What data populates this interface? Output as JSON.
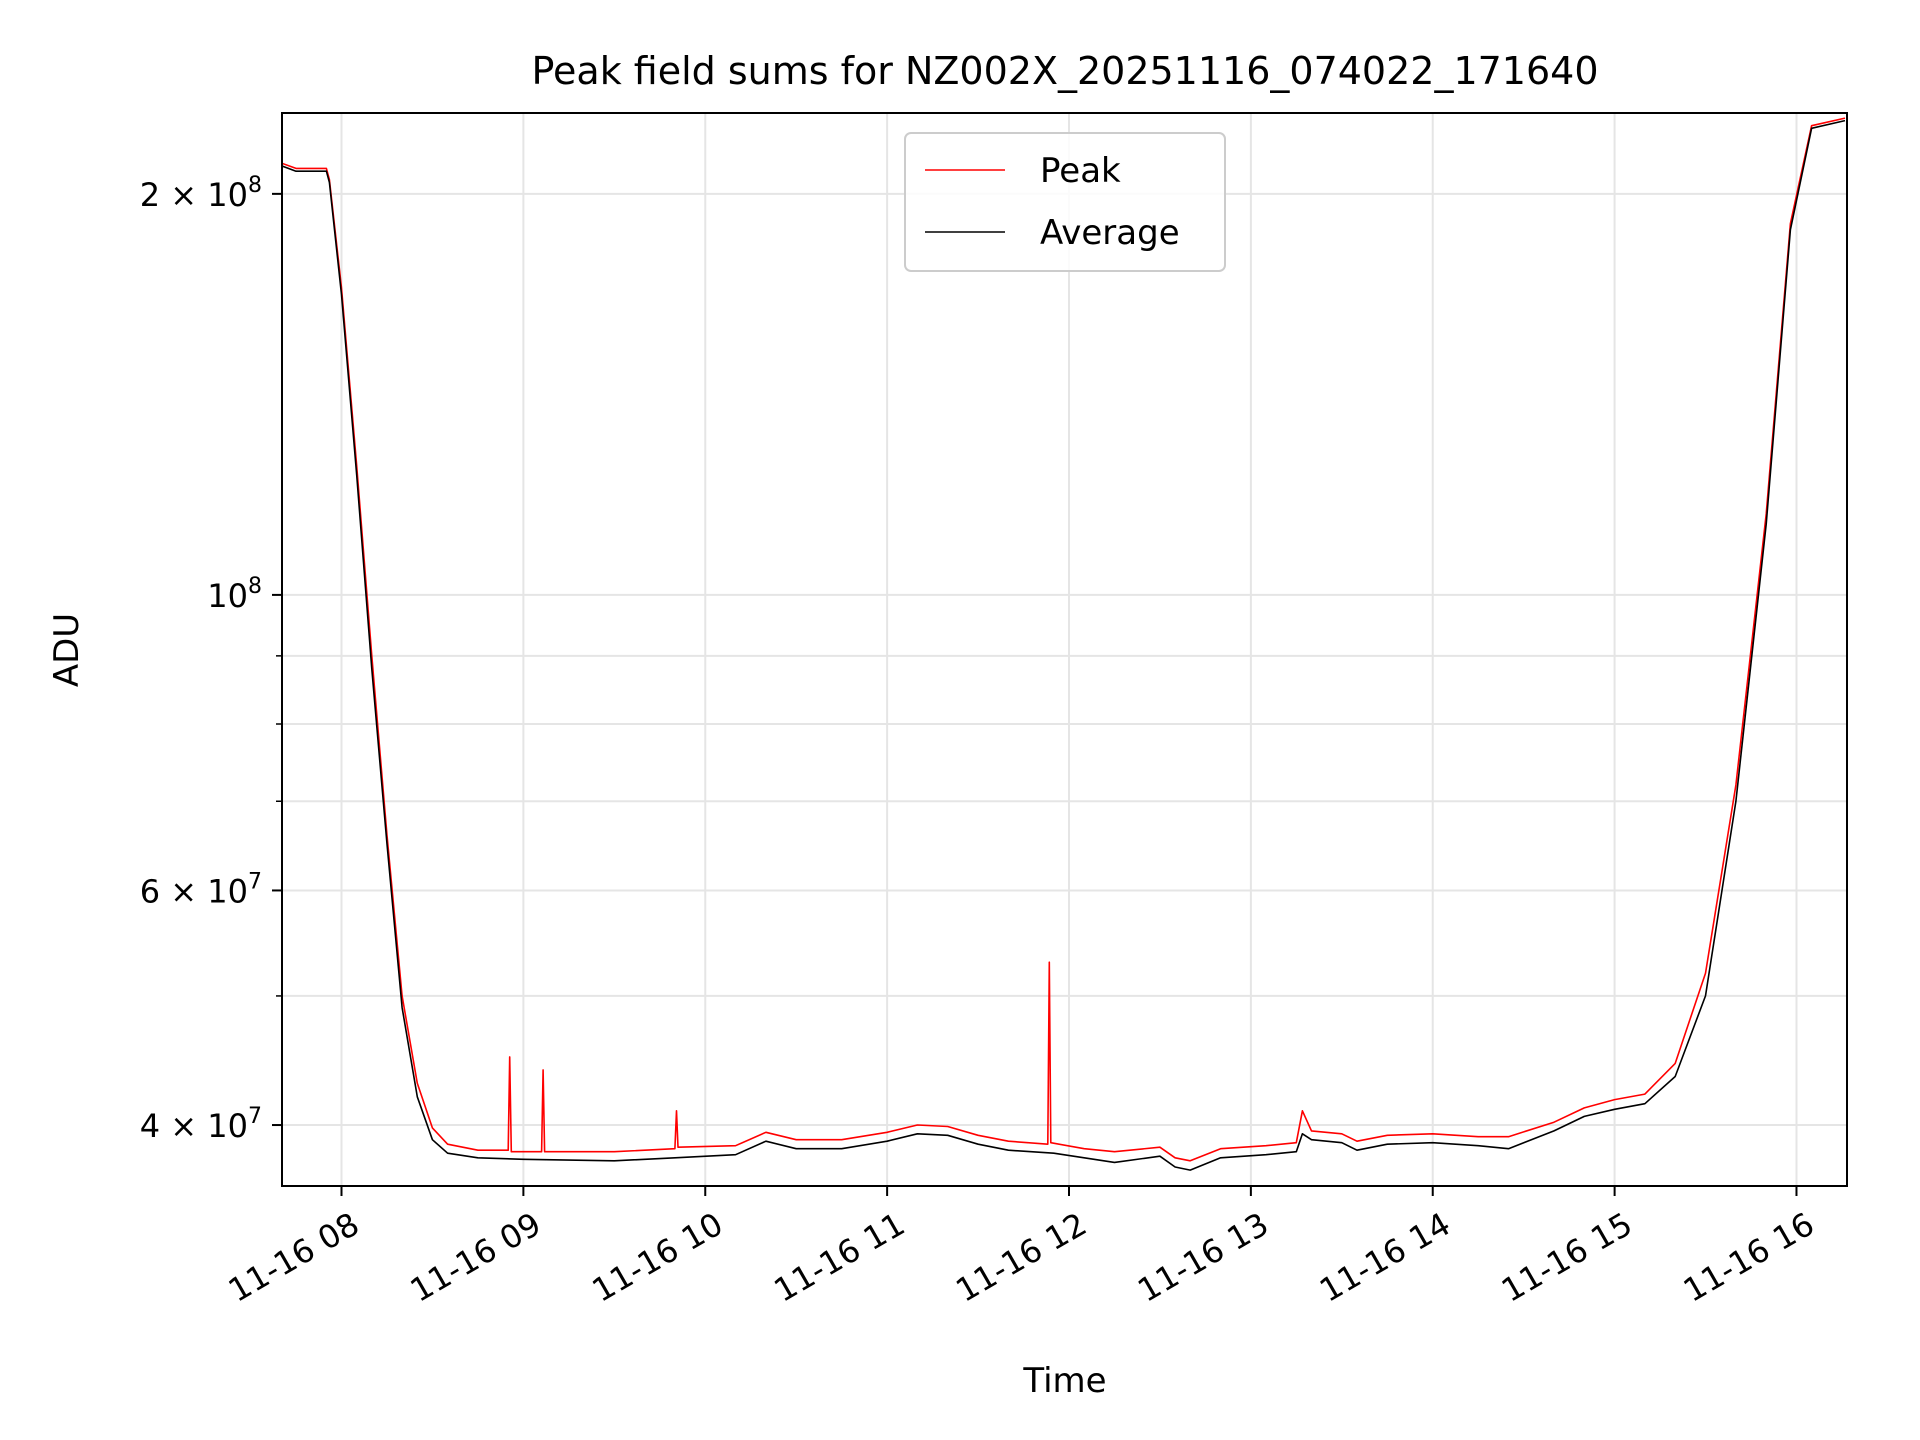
{
  "chart_data": {
    "type": "line",
    "title": "Peak field sums for NZ002X_20251116_074022_171640",
    "xlabel": "Time",
    "ylabel": "ADU",
    "yscale": "log",
    "xlim": [
      "2025-11-16 07:40:22",
      "2025-11-16 16:16:40"
    ],
    "ylim": [
      36000000,
      230000000
    ],
    "grid": true,
    "legend": "upper center",
    "x_ticks": [
      {
        "t": "2025-11-16 08:00",
        "label": "11-16 08"
      },
      {
        "t": "2025-11-16 09:00",
        "label": "11-16 09"
      },
      {
        "t": "2025-11-16 10:00",
        "label": "11-16 10"
      },
      {
        "t": "2025-11-16 11:00",
        "label": "11-16 11"
      },
      {
        "t": "2025-11-16 12:00",
        "label": "11-16 12"
      },
      {
        "t": "2025-11-16 13:00",
        "label": "11-16 13"
      },
      {
        "t": "2025-11-16 14:00",
        "label": "11-16 14"
      },
      {
        "t": "2025-11-16 15:00",
        "label": "11-16 15"
      },
      {
        "t": "2025-11-16 16:00",
        "label": "11-16 16"
      }
    ],
    "y_ticks": [
      {
        "v": 40000000,
        "mant": "4",
        "exp": "7"
      },
      {
        "v": 60000000,
        "mant": "6",
        "exp": "7"
      },
      {
        "v": 100000000,
        "mant": "",
        "exp": "8"
      },
      {
        "v": 200000000,
        "mant": "2",
        "exp": "8"
      }
    ],
    "y_minor_ticks": [
      50000000,
      70000000,
      80000000,
      90000000
    ],
    "series": [
      {
        "name": "Peak",
        "color": "#ff0000",
        "points": [
          [
            "2025-11-16 07:40",
            211000000
          ],
          [
            "2025-11-16 07:45",
            209000000
          ],
          [
            "2025-11-16 07:55",
            209000000
          ],
          [
            "2025-11-16 07:56",
            205000000
          ],
          [
            "2025-11-16 08:00",
            170000000
          ],
          [
            "2025-11-16 08:05",
            125000000
          ],
          [
            "2025-11-16 08:10",
            90000000
          ],
          [
            "2025-11-16 08:15",
            66000000
          ],
          [
            "2025-11-16 08:20",
            50000000
          ],
          [
            "2025-11-16 08:25",
            43000000
          ],
          [
            "2025-11-16 08:30",
            39800000
          ],
          [
            "2025-11-16 08:35",
            38700000
          ],
          [
            "2025-11-16 08:45",
            38300000
          ],
          [
            "2025-11-16 08:55",
            38300000
          ],
          [
            "2025-11-16 08:55:30",
            45000000
          ],
          [
            "2025-11-16 08:56",
            38200000
          ],
          [
            "2025-11-16 09:06",
            38200000
          ],
          [
            "2025-11-16 09:06:30",
            44000000
          ],
          [
            "2025-11-16 09:07",
            38200000
          ],
          [
            "2025-11-16 09:30",
            38200000
          ],
          [
            "2025-11-16 09:50",
            38400000
          ],
          [
            "2025-11-16 09:50:30",
            41000000
          ],
          [
            "2025-11-16 09:51",
            38500000
          ],
          [
            "2025-11-16 10:10",
            38600000
          ],
          [
            "2025-11-16 10:20",
            39500000
          ],
          [
            "2025-11-16 10:30",
            39000000
          ],
          [
            "2025-11-16 10:45",
            39000000
          ],
          [
            "2025-11-16 11:00",
            39500000
          ],
          [
            "2025-11-16 11:10",
            40000000
          ],
          [
            "2025-11-16 11:20",
            39900000
          ],
          [
            "2025-11-16 11:30",
            39300000
          ],
          [
            "2025-11-16 11:40",
            38900000
          ],
          [
            "2025-11-16 11:53",
            38700000
          ],
          [
            "2025-11-16 11:53:30",
            53000000
          ],
          [
            "2025-11-16 11:54",
            38800000
          ],
          [
            "2025-11-16 12:05",
            38400000
          ],
          [
            "2025-11-16 12:15",
            38200000
          ],
          [
            "2025-11-16 12:30",
            38500000
          ],
          [
            "2025-11-16 12:35",
            37800000
          ],
          [
            "2025-11-16 12:40",
            37600000
          ],
          [
            "2025-11-16 12:50",
            38400000
          ],
          [
            "2025-11-16 13:05",
            38600000
          ],
          [
            "2025-11-16 13:15",
            38800000
          ],
          [
            "2025-11-16 13:17",
            41000000
          ],
          [
            "2025-11-16 13:20",
            39600000
          ],
          [
            "2025-11-16 13:30",
            39400000
          ],
          [
            "2025-11-16 13:35",
            38900000
          ],
          [
            "2025-11-16 13:45",
            39300000
          ],
          [
            "2025-11-16 14:00",
            39400000
          ],
          [
            "2025-11-16 14:15",
            39200000
          ],
          [
            "2025-11-16 14:25",
            39200000
          ],
          [
            "2025-11-16 14:40",
            40200000
          ],
          [
            "2025-11-16 14:50",
            41200000
          ],
          [
            "2025-11-16 15:00",
            41800000
          ],
          [
            "2025-11-16 15:10",
            42200000
          ],
          [
            "2025-11-16 15:20",
            44500000
          ],
          [
            "2025-11-16 15:30",
            52000000
          ],
          [
            "2025-11-16 15:40",
            72000000
          ],
          [
            "2025-11-16 15:50",
            115000000
          ],
          [
            "2025-11-16 15:58",
            190000000
          ],
          [
            "2025-11-16 16:05",
            225000000
          ],
          [
            "2025-11-16 16:16",
            228000000
          ]
        ]
      },
      {
        "name": "Average",
        "color": "#000000",
        "points": [
          [
            "2025-11-16 07:40",
            210000000
          ],
          [
            "2025-11-16 07:45",
            208000000
          ],
          [
            "2025-11-16 07:55",
            208000000
          ],
          [
            "2025-11-16 07:56",
            204000000
          ],
          [
            "2025-11-16 08:00",
            168000000
          ],
          [
            "2025-11-16 08:05",
            123000000
          ],
          [
            "2025-11-16 08:10",
            88000000
          ],
          [
            "2025-11-16 08:15",
            65000000
          ],
          [
            "2025-11-16 08:20",
            49000000
          ],
          [
            "2025-11-16 08:25",
            42000000
          ],
          [
            "2025-11-16 08:30",
            39000000
          ],
          [
            "2025-11-16 08:35",
            38100000
          ],
          [
            "2025-11-16 08:45",
            37800000
          ],
          [
            "2025-11-16 09:00",
            37700000
          ],
          [
            "2025-11-16 09:30",
            37600000
          ],
          [
            "2025-11-16 09:50",
            37800000
          ],
          [
            "2025-11-16 10:10",
            38000000
          ],
          [
            "2025-11-16 10:20",
            38900000
          ],
          [
            "2025-11-16 10:30",
            38400000
          ],
          [
            "2025-11-16 10:45",
            38400000
          ],
          [
            "2025-11-16 11:00",
            38900000
          ],
          [
            "2025-11-16 11:10",
            39400000
          ],
          [
            "2025-11-16 11:20",
            39300000
          ],
          [
            "2025-11-16 11:30",
            38700000
          ],
          [
            "2025-11-16 11:40",
            38300000
          ],
          [
            "2025-11-16 11:55",
            38100000
          ],
          [
            "2025-11-16 12:05",
            37800000
          ],
          [
            "2025-11-16 12:15",
            37500000
          ],
          [
            "2025-11-16 12:30",
            37900000
          ],
          [
            "2025-11-16 12:35",
            37200000
          ],
          [
            "2025-11-16 12:40",
            37000000
          ],
          [
            "2025-11-16 12:50",
            37800000
          ],
          [
            "2025-11-16 13:05",
            38000000
          ],
          [
            "2025-11-16 13:15",
            38200000
          ],
          [
            "2025-11-16 13:17",
            39400000
          ],
          [
            "2025-11-16 13:20",
            39000000
          ],
          [
            "2025-11-16 13:30",
            38800000
          ],
          [
            "2025-11-16 13:35",
            38300000
          ],
          [
            "2025-11-16 13:45",
            38700000
          ],
          [
            "2025-11-16 14:00",
            38800000
          ],
          [
            "2025-11-16 14:15",
            38600000
          ],
          [
            "2025-11-16 14:25",
            38400000
          ],
          [
            "2025-11-16 14:40",
            39600000
          ],
          [
            "2025-11-16 14:50",
            40600000
          ],
          [
            "2025-11-16 15:00",
            41100000
          ],
          [
            "2025-11-16 15:10",
            41500000
          ],
          [
            "2025-11-16 15:20",
            43500000
          ],
          [
            "2025-11-16 15:30",
            50000000
          ],
          [
            "2025-11-16 15:40",
            70000000
          ],
          [
            "2025-11-16 15:50",
            113000000
          ],
          [
            "2025-11-16 15:58",
            188000000
          ],
          [
            "2025-11-16 16:05",
            224000000
          ],
          [
            "2025-11-16 16:16",
            227000000
          ]
        ]
      }
    ]
  }
}
